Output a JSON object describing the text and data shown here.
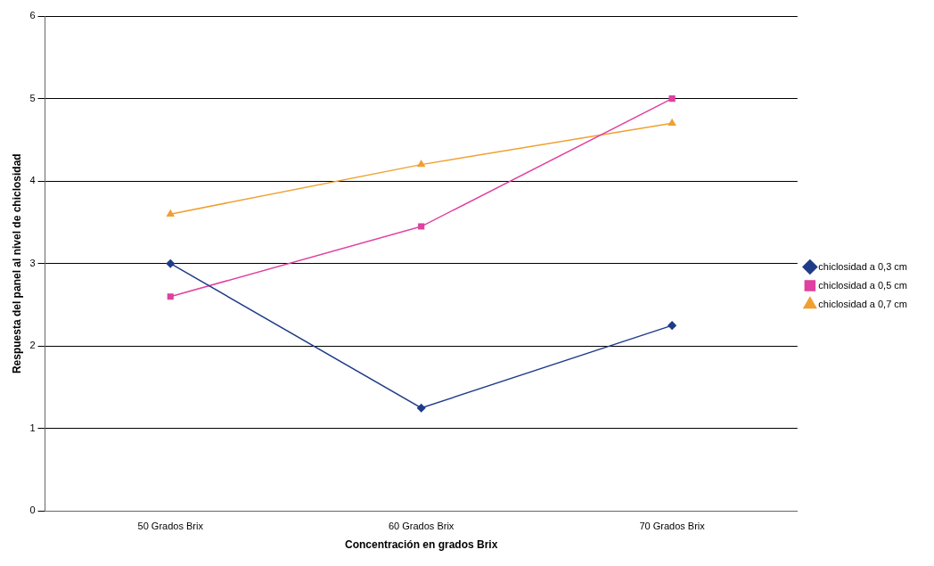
{
  "chart_data": {
    "type": "line",
    "xlabel": "Concentración en grados Brix",
    "ylabel": "Respuesta del panel al nivel de chiclosidad",
    "categories": [
      "50 Grados Brix",
      "60 Grados Brix",
      "70 Grados Brix"
    ],
    "series": [
      {
        "name": "chiclosidad a 0,3 cm",
        "color": "#1f3c88",
        "marker": "diamond",
        "values": [
          3.0,
          1.25,
          2.25
        ]
      },
      {
        "name": "chiclosidad a 0,5 cm",
        "color": "#e040a0",
        "marker": "square",
        "values": [
          2.6,
          3.45,
          5.0
        ]
      },
      {
        "name": "chiclosidad a 0,7 cm",
        "color": "#f0a030",
        "marker": "triangle",
        "values": [
          3.6,
          4.2,
          4.7
        ]
      }
    ],
    "ylim": [
      0,
      6
    ],
    "yticks": [
      0,
      1,
      2,
      3,
      4,
      5,
      6
    ],
    "grid": "y",
    "legend": "right"
  }
}
